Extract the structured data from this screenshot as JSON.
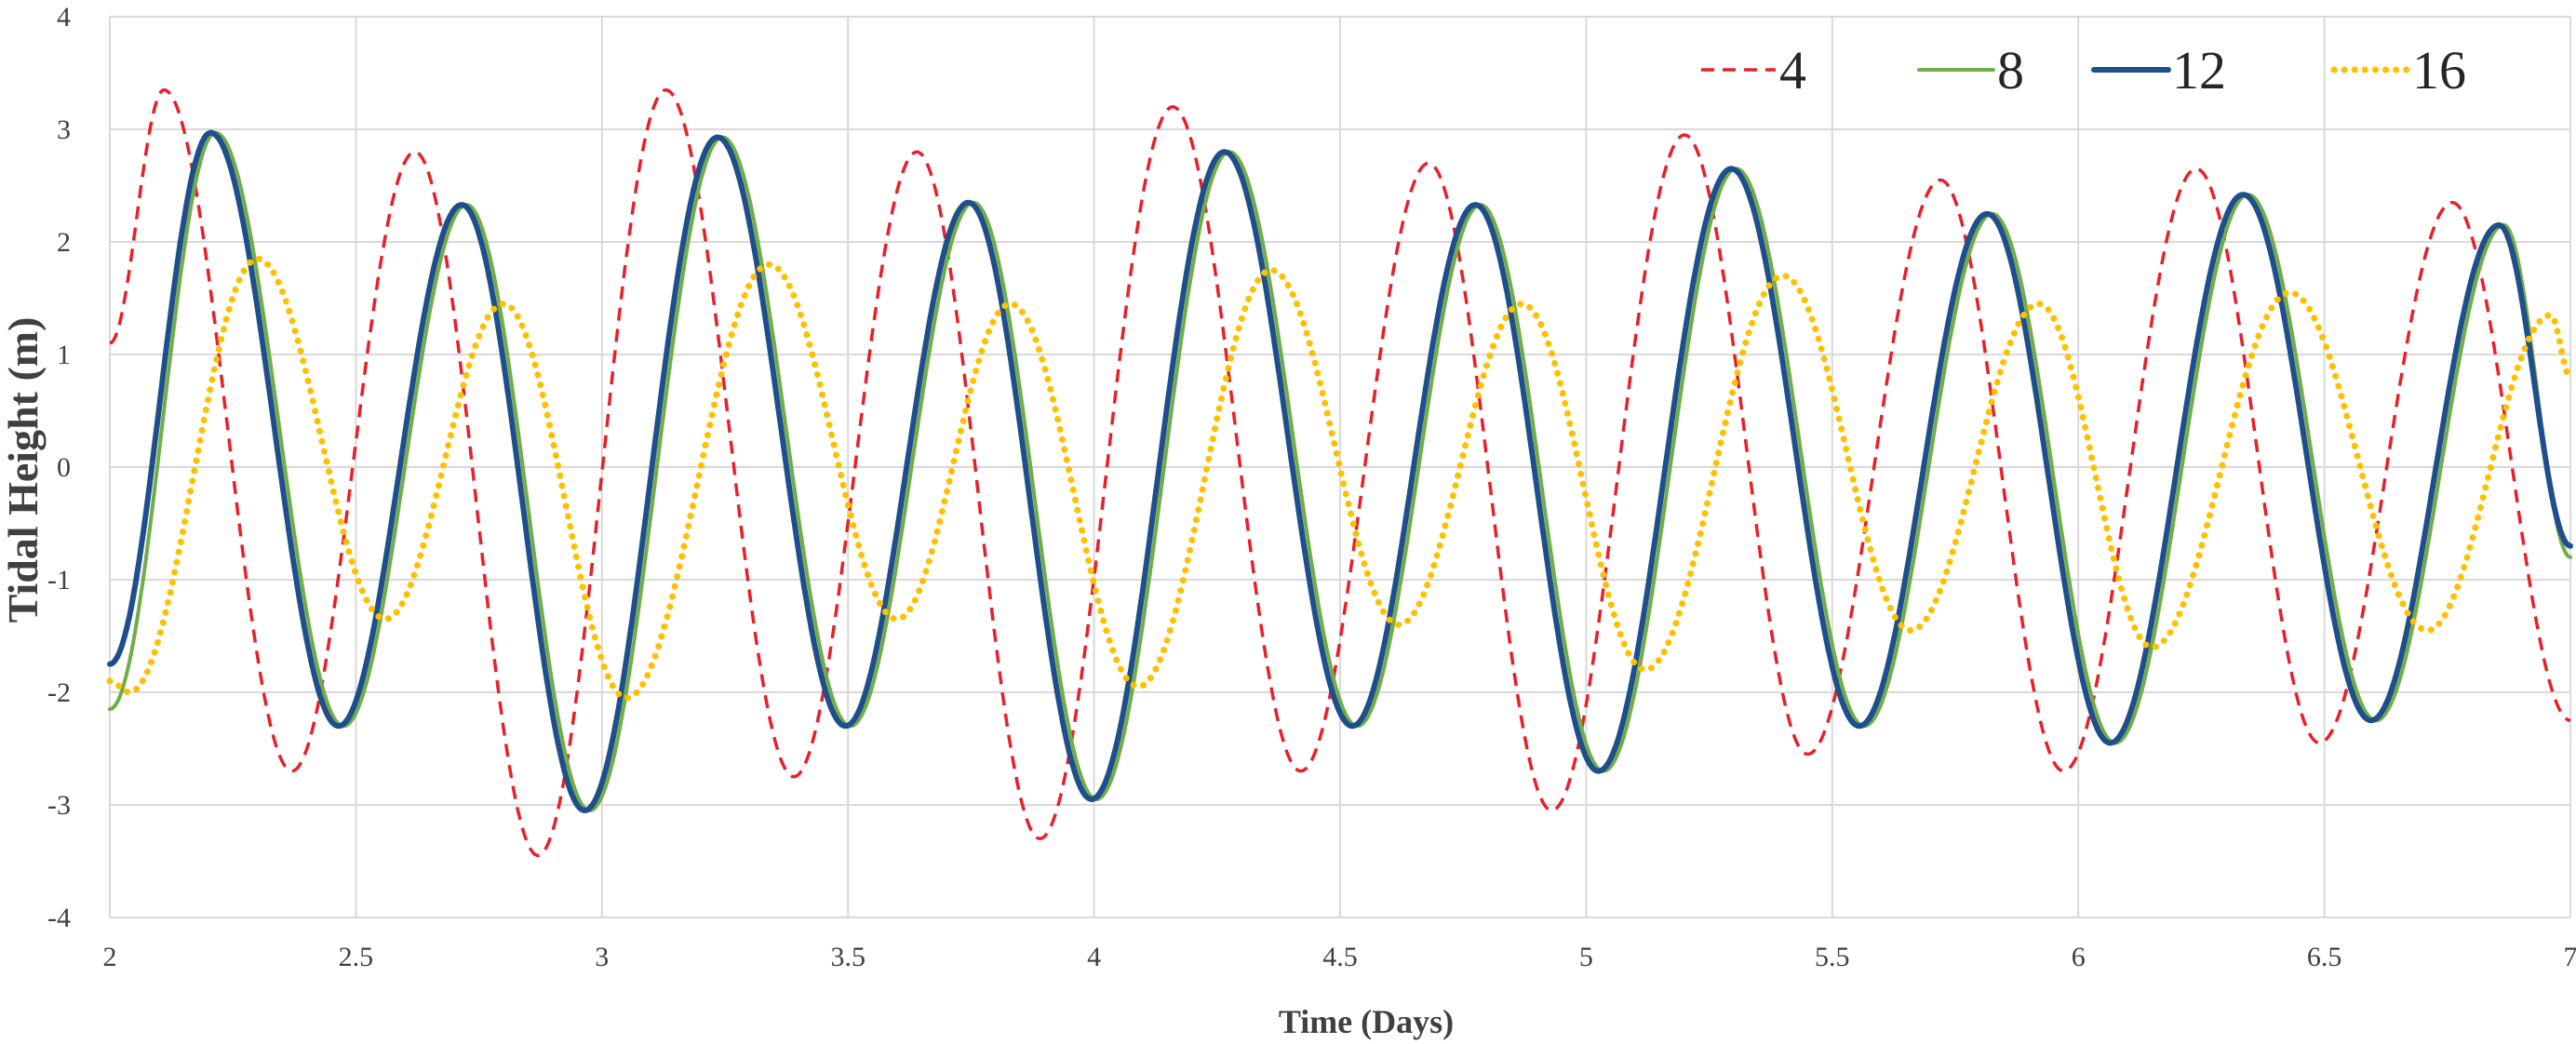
{
  "chart_data": {
    "type": "line",
    "title": "",
    "xlabel": "Time (Days)",
    "ylabel": "Tidal Height (m)",
    "xlim": [
      2,
      7
    ],
    "ylim": [
      -4,
      4
    ],
    "x_ticks": [
      2,
      2.5,
      3,
      3.5,
      4,
      4.5,
      5,
      5.5,
      6,
      6.5,
      7
    ],
    "x_tick_labels": [
      "2",
      "2.5",
      "3",
      "3.5",
      "4",
      "4.5",
      "5",
      "5.5",
      "6",
      "6.5",
      "7"
    ],
    "y_ticks": [
      -4,
      -3,
      -2,
      -1,
      0,
      1,
      2,
      3,
      4
    ],
    "y_tick_labels": [
      "-4",
      "-3",
      "-2",
      "-1",
      "0",
      "1",
      "2",
      "3",
      "4"
    ],
    "grid": true,
    "legend_position": "top-right",
    "series": [
      {
        "name": "4",
        "color": "#E8202A",
        "style": "dashed",
        "points": [
          [
            2.0,
            1.1
          ],
          [
            2.11,
            3.35
          ],
          [
            2.37,
            -2.7
          ],
          [
            2.62,
            2.8
          ],
          [
            2.87,
            -3.45
          ],
          [
            3.13,
            3.35
          ],
          [
            3.39,
            -2.75
          ],
          [
            3.64,
            2.8
          ],
          [
            3.89,
            -3.3
          ],
          [
            4.16,
            3.2
          ],
          [
            4.42,
            -2.7
          ],
          [
            4.68,
            2.7
          ],
          [
            4.93,
            -3.05
          ],
          [
            5.2,
            2.95
          ],
          [
            5.45,
            -2.55
          ],
          [
            5.72,
            2.55
          ],
          [
            5.97,
            -2.7
          ],
          [
            6.24,
            2.65
          ],
          [
            6.49,
            -2.45
          ],
          [
            6.76,
            2.35
          ],
          [
            7.0,
            -2.25
          ]
        ]
      },
      {
        "name": "8",
        "color": "#70AD47",
        "style": "solid",
        "points": [
          [
            2.0,
            -2.15
          ],
          [
            2.215,
            2.97
          ],
          [
            2.475,
            -2.3
          ],
          [
            2.725,
            2.33
          ],
          [
            2.975,
            -3.05
          ],
          [
            3.245,
            2.93
          ],
          [
            3.505,
            -2.3
          ],
          [
            3.755,
            2.35
          ],
          [
            4.005,
            -2.95
          ],
          [
            4.275,
            2.8
          ],
          [
            4.535,
            -2.3
          ],
          [
            4.785,
            2.33
          ],
          [
            5.035,
            -2.7
          ],
          [
            5.305,
            2.65
          ],
          [
            5.565,
            -2.3
          ],
          [
            5.825,
            2.25
          ],
          [
            6.075,
            -2.45
          ],
          [
            6.345,
            2.42
          ],
          [
            6.605,
            -2.25
          ],
          [
            6.865,
            2.15
          ],
          [
            7.0,
            -0.8
          ]
        ]
      },
      {
        "name": "12",
        "color": "#1F4E8C",
        "style": "solid",
        "points": [
          [
            2.0,
            -1.75
          ],
          [
            2.205,
            2.97
          ],
          [
            2.465,
            -2.3
          ],
          [
            2.715,
            2.33
          ],
          [
            2.965,
            -3.05
          ],
          [
            3.235,
            2.93
          ],
          [
            3.495,
            -2.3
          ],
          [
            3.745,
            2.35
          ],
          [
            3.995,
            -2.95
          ],
          [
            4.265,
            2.8
          ],
          [
            4.525,
            -2.3
          ],
          [
            4.775,
            2.33
          ],
          [
            5.025,
            -2.7
          ],
          [
            5.295,
            2.65
          ],
          [
            5.555,
            -2.3
          ],
          [
            5.815,
            2.25
          ],
          [
            6.065,
            -2.45
          ],
          [
            6.335,
            2.42
          ],
          [
            6.595,
            -2.25
          ],
          [
            6.855,
            2.15
          ],
          [
            7.0,
            -0.7
          ]
        ]
      },
      {
        "name": "16",
        "color": "#FFC000",
        "style": "dotted",
        "points": [
          [
            2.0,
            -1.9
          ],
          [
            2.04,
            -2.0
          ],
          [
            2.3,
            1.85
          ],
          [
            2.56,
            -1.35
          ],
          [
            2.8,
            1.45
          ],
          [
            3.05,
            -2.05
          ],
          [
            3.34,
            1.8
          ],
          [
            3.6,
            -1.35
          ],
          [
            3.83,
            1.45
          ],
          [
            4.09,
            -1.95
          ],
          [
            4.36,
            1.75
          ],
          [
            4.62,
            -1.4
          ],
          [
            4.87,
            1.45
          ],
          [
            5.12,
            -1.8
          ],
          [
            5.4,
            1.7
          ],
          [
            5.66,
            -1.45
          ],
          [
            5.92,
            1.45
          ],
          [
            6.15,
            -1.6
          ],
          [
            6.43,
            1.55
          ],
          [
            6.71,
            -1.45
          ],
          [
            6.96,
            1.35
          ],
          [
            7.0,
            0.8
          ]
        ]
      }
    ]
  }
}
